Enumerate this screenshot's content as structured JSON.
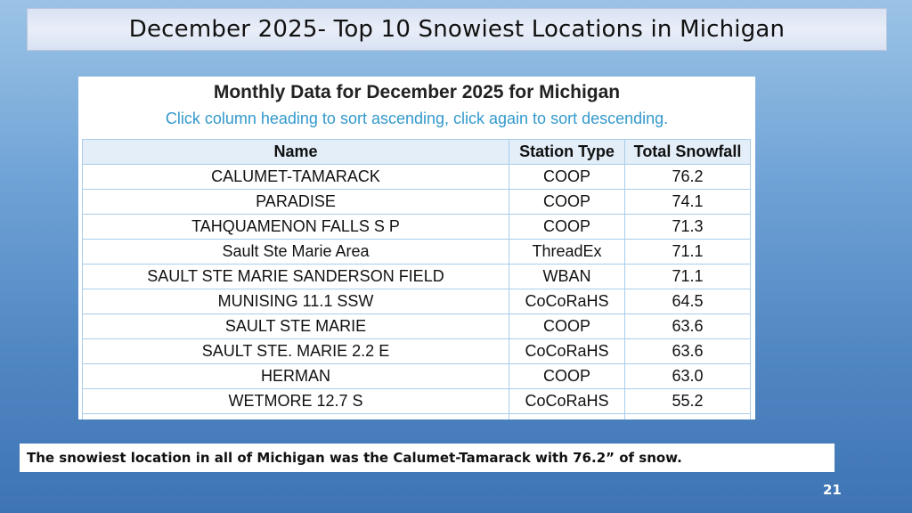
{
  "slide": {
    "title": "December 2025- Top 10 Snowiest Locations in Michigan",
    "caption": "The snowiest location in all of Michigan was the Calumet-Tamarack with 76.2” of snow.",
    "page_number": "21"
  },
  "panel": {
    "heading": "Monthly Data for December 2025 for Michigan",
    "instructions": "Click column heading to sort ascending, click again to sort descending."
  },
  "table": {
    "headers": {
      "name": "Name",
      "station_type": "Station Type",
      "total_snowfall": "Total Snowfall"
    },
    "rows": [
      {
        "name": "CALUMET-TAMARACK",
        "station_type": "COOP",
        "total_snowfall": "76.2"
      },
      {
        "name": "PARADISE",
        "station_type": "COOP",
        "total_snowfall": "74.1"
      },
      {
        "name": "TAHQUAMENON FALLS S P",
        "station_type": "COOP",
        "total_snowfall": "71.3"
      },
      {
        "name": "Sault Ste Marie Area",
        "station_type": "ThreadEx",
        "total_snowfall": "71.1"
      },
      {
        "name": "SAULT STE MARIE SANDERSON FIELD",
        "station_type": "WBAN",
        "total_snowfall": "71.1"
      },
      {
        "name": "MUNISING 11.1 SSW",
        "station_type": "CoCoRaHS",
        "total_snowfall": "64.5"
      },
      {
        "name": "SAULT STE MARIE",
        "station_type": "COOP",
        "total_snowfall": "63.6"
      },
      {
        "name": "SAULT STE. MARIE 2.2 E",
        "station_type": "CoCoRaHS",
        "total_snowfall": "63.6"
      },
      {
        "name": "HERMAN",
        "station_type": "COOP",
        "total_snowfall": "63.0"
      },
      {
        "name": "WETMORE 12.7 S",
        "station_type": "CoCoRaHS",
        "total_snowfall": "55.2"
      }
    ]
  },
  "colors": {
    "instructions": "#3399cc",
    "table_border": "#a9cdea",
    "header_bg": "#e3eef8",
    "title_bar_bg": "#d9e2f3"
  }
}
